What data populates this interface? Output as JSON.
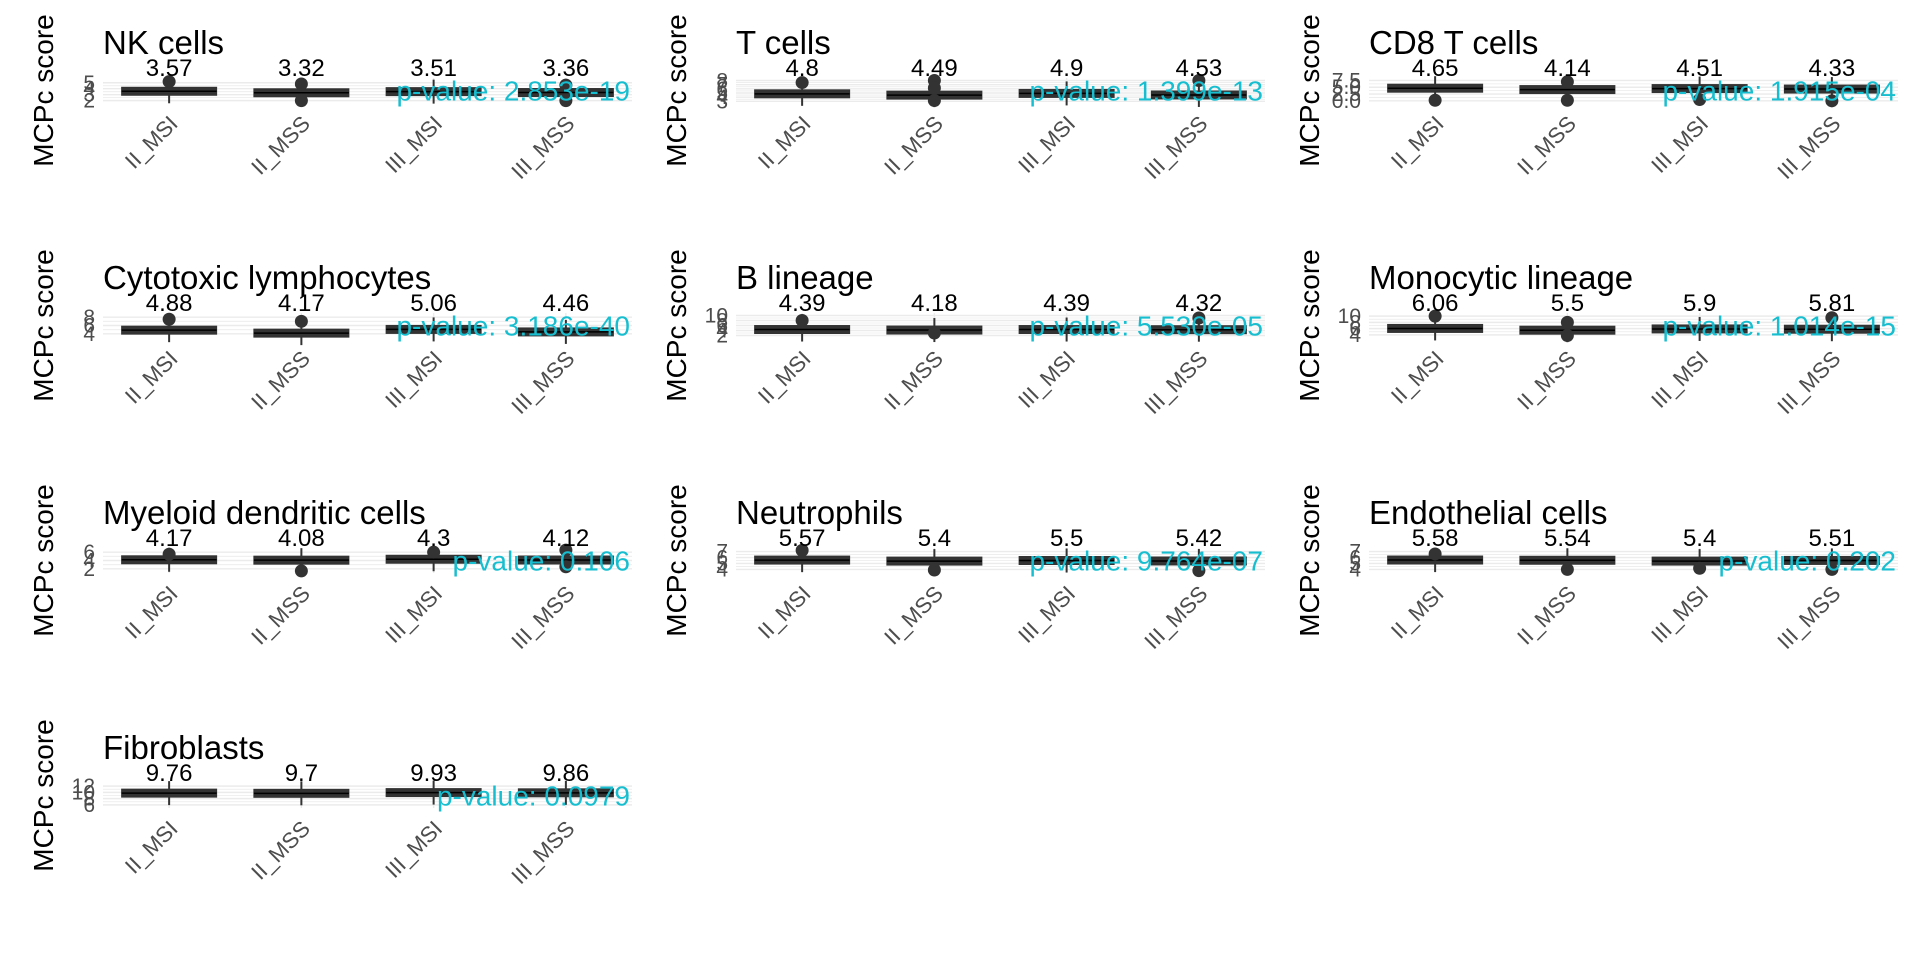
{
  "colors": {
    "box": "#333333",
    "grid": "#ebebeb",
    "pvalue": "#17becf",
    "ticks": "#4d4d4d"
  },
  "chart_data": [
    {
      "type": "box",
      "title": "NK cells",
      "ylabel": "MCPc score",
      "xlabel": "",
      "categories": [
        "II_MSI",
        "II_MSS",
        "III_MSI",
        "III_MSS"
      ],
      "yticks": [
        2,
        3,
        4,
        5
      ],
      "ylim": [
        1.6,
        5.8
      ],
      "medians": [
        3.57,
        3.32,
        3.51,
        3.36
      ],
      "median_labels": [
        "3.57",
        "3.32",
        "3.51",
        "3.36"
      ],
      "outliers": [
        [
          5.2
        ],
        [
          4.8,
          2.0
        ],
        [],
        [
          2.0,
          4.6
        ]
      ],
      "pvalue": "p-value: 2.853e-19"
    },
    {
      "type": "box",
      "title": "T cells",
      "ylabel": "MCPc score",
      "xlabel": "",
      "categories": [
        "II_MSI",
        "II_MSS",
        "III_MSI",
        "III_MSS"
      ],
      "yticks": [
        3,
        4,
        5,
        6,
        7,
        8
      ],
      "ylim": [
        2.6,
        8.6
      ],
      "medians": [
        4.8,
        4.49,
        4.9,
        4.53
      ],
      "median_labels": [
        "4.8",
        "4.49",
        "4.9",
        "4.53"
      ],
      "outliers": [
        [
          7.5
        ],
        [
          8.0,
          6.2,
          3.2
        ],
        [],
        [
          8.0
        ]
      ],
      "pvalue": "p-value: 1.399e-13"
    },
    {
      "type": "box",
      "title": "CD8 T cells",
      "ylabel": "MCPc score",
      "xlabel": "",
      "categories": [
        "II_MSI",
        "II_MSS",
        "III_MSI",
        "III_MSS"
      ],
      "yticks": [
        0.0,
        2.5,
        5.0,
        7.5
      ],
      "yticklabels": [
        "0.0",
        "2.5",
        "5.0",
        "7.5"
      ],
      "ylim": [
        -0.8,
        8.4
      ],
      "medians": [
        4.65,
        4.14,
        4.51,
        4.33
      ],
      "median_labels": [
        "4.65",
        "4.14",
        "4.51",
        "4.33"
      ],
      "outliers": [
        [
          0.2
        ],
        [
          7.0,
          0.2
        ],
        [
          0.5
        ],
        [
          0.0
        ]
      ],
      "pvalue": "p-value: 1.915e-04"
    },
    {
      "type": "box",
      "title": "Cytotoxic lymphocytes",
      "ylabel": "MCPc score",
      "xlabel": "",
      "categories": [
        "II_MSI",
        "II_MSS",
        "III_MSI",
        "III_MSS"
      ],
      "yticks": [
        4,
        6,
        8
      ],
      "ylim": [
        3.0,
        9.0
      ],
      "medians": [
        4.88,
        4.17,
        5.06,
        4.46
      ],
      "median_labels": [
        "4.88",
        "4.17",
        "5.06",
        "4.46"
      ],
      "outliers": [
        [
          7.5
        ],
        [
          7.0
        ],
        [],
        []
      ],
      "pvalue": "p-value: 3.186e-40"
    },
    {
      "type": "box",
      "title": "B lineage",
      "ylabel": "MCPc score",
      "xlabel": "",
      "categories": [
        "II_MSI",
        "II_MSS",
        "III_MSI",
        "III_MSS"
      ],
      "yticks": [
        2,
        4,
        6,
        8,
        10
      ],
      "ylim": [
        1.0,
        11.0
      ],
      "medians": [
        4.39,
        4.18,
        4.39,
        4.32
      ],
      "median_labels": [
        "4.39",
        "4.18",
        "4.39",
        "4.32"
      ],
      "outliers": [
        [
          8.0
        ],
        [
          3.0
        ],
        [],
        [
          9.0
        ]
      ],
      "pvalue": "p-value: 5.530e-05"
    },
    {
      "type": "box",
      "title": "Monocytic lineage",
      "ylabel": "MCPc score",
      "xlabel": "",
      "categories": [
        "II_MSI",
        "II_MSS",
        "III_MSI",
        "III_MSS"
      ],
      "yticks": [
        4,
        6,
        8,
        10
      ],
      "ylim": [
        3.0,
        11.0
      ],
      "medians": [
        6.06,
        5.5,
        5.9,
        5.81
      ],
      "median_labels": [
        "6.06",
        "5.5",
        "5.9",
        "5.81"
      ],
      "outliers": [
        [
          10.0
        ],
        [
          8.0,
          3.8
        ],
        [],
        [
          9.5
        ]
      ],
      "pvalue": "p-value: 1.014e-15"
    },
    {
      "type": "box",
      "title": "Myeloid dendritic cells",
      "ylabel": "MCPc score",
      "xlabel": "",
      "categories": [
        "II_MSI",
        "II_MSS",
        "III_MSI",
        "III_MSS"
      ],
      "yticks": [
        2,
        4,
        6
      ],
      "ylim": [
        1.0,
        7.0
      ],
      "medians": [
        4.17,
        4.08,
        4.3,
        4.12
      ],
      "median_labels": [
        "4.17",
        "4.08",
        "4.3",
        "4.12"
      ],
      "outliers": [
        [
          5.5
        ],
        [
          1.5
        ],
        [
          6.0
        ],
        [
          2.5,
          6.5
        ]
      ],
      "pvalue": "p-value: 0.106"
    },
    {
      "type": "box",
      "title": "Neutrophils",
      "ylabel": "MCPc score",
      "xlabel": "",
      "categories": [
        "II_MSI",
        "II_MSS",
        "III_MSI",
        "III_MSS"
      ],
      "yticks": [
        4,
        5,
        6,
        7
      ],
      "ylim": [
        3.4,
        7.6
      ],
      "medians": [
        5.57,
        5.4,
        5.5,
        5.42
      ],
      "median_labels": [
        "5.57",
        "5.4",
        "5.5",
        "5.42"
      ],
      "outliers": [
        [
          7.2
        ],
        [
          3.9
        ],
        [],
        [
          3.8
        ]
      ],
      "pvalue": "p-value: 9.764e-07"
    },
    {
      "type": "box",
      "title": "Endothelial cells",
      "ylabel": "MCPc score",
      "xlabel": "",
      "categories": [
        "II_MSI",
        "II_MSS",
        "III_MSI",
        "III_MSS"
      ],
      "yticks": [
        4,
        5,
        6,
        7
      ],
      "ylim": [
        3.4,
        7.6
      ],
      "medians": [
        5.58,
        5.54,
        5.4,
        5.51
      ],
      "median_labels": [
        "5.58",
        "5.54",
        "5.4",
        "5.51"
      ],
      "outliers": [
        [
          6.6
        ],
        [
          4.0
        ],
        [
          4.2
        ],
        [
          4.0
        ]
      ],
      "pvalue": "p-value: 0.202"
    },
    {
      "type": "box",
      "title": "Fibroblasts",
      "ylabel": "MCPc score",
      "xlabel": "",
      "categories": [
        "II_MSI",
        "II_MSS",
        "III_MSI",
        "III_MSS"
      ],
      "yticks": [
        6,
        8,
        10,
        12
      ],
      "ylim": [
        5.0,
        13.0
      ],
      "medians": [
        9.76,
        9.7,
        9.93,
        9.86
      ],
      "median_labels": [
        "9.76",
        "9.7",
        "9.93",
        "9.86"
      ],
      "outliers": [
        [],
        [],
        [],
        []
      ],
      "pvalue": "p-value: 0.0979"
    }
  ]
}
